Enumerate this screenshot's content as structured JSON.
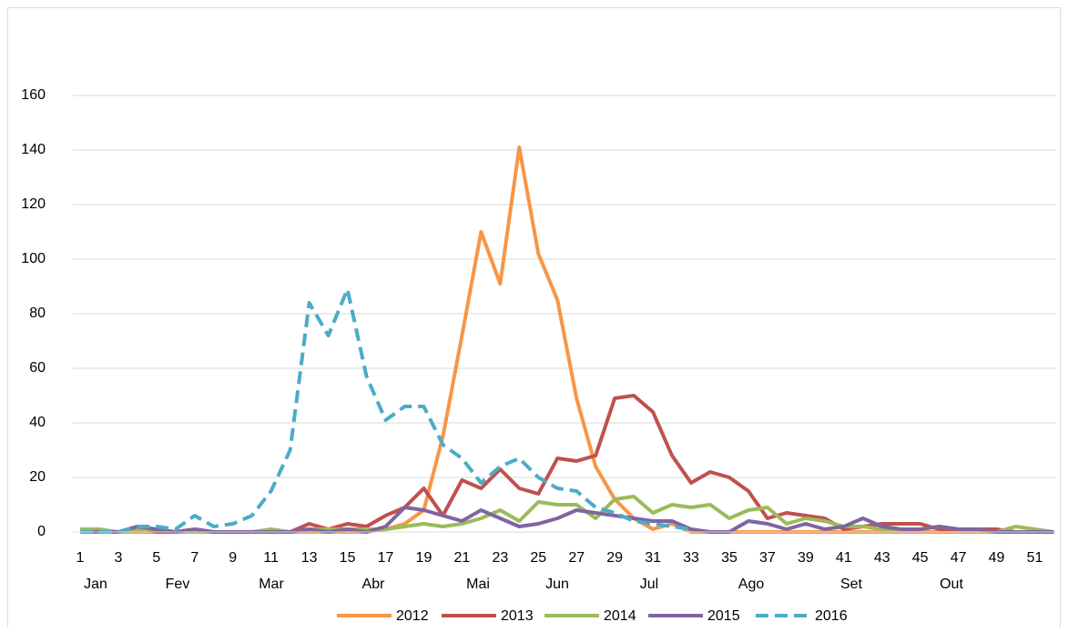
{
  "chart_data": {
    "type": "line",
    "categories": [
      "1",
      null,
      "3",
      null,
      "5",
      null,
      "7",
      null,
      "9",
      null,
      "11",
      null,
      "13",
      null,
      "15",
      null,
      "17",
      null,
      "19",
      null,
      "21",
      null,
      "23",
      null,
      "25",
      null,
      "27",
      null,
      "29",
      null,
      "31",
      null,
      "33",
      null,
      "35",
      null,
      "37",
      null,
      "39",
      null,
      "41",
      null,
      "43",
      null,
      "45",
      null,
      "47",
      null,
      "49",
      null,
      "51",
      null
    ],
    "months": [
      "Jan",
      "Fev",
      "Mar",
      "Abr",
      "Mai",
      "Jun",
      "Jul",
      "Ago",
      "Set",
      "Out"
    ],
    "ylim": [
      0,
      180
    ],
    "yticks": [
      0,
      20,
      40,
      60,
      80,
      100,
      120,
      140,
      160
    ],
    "grid": true,
    "series": [
      {
        "name": "2012",
        "color": "#f79646",
        "dashed": false,
        "values": [
          0,
          0,
          0,
          0,
          0,
          0,
          0,
          0,
          0,
          0,
          0,
          0,
          0,
          0,
          0,
          0,
          1,
          3,
          8,
          35,
          72,
          110,
          91,
          141,
          102,
          85,
          49,
          24,
          12,
          5,
          1,
          3,
          0,
          0,
          0,
          0,
          0,
          0,
          0,
          0,
          0,
          0,
          0,
          0,
          0,
          0,
          0,
          0,
          0,
          0,
          0,
          0
        ]
      },
      {
        "name": "2013",
        "color": "#c0504d",
        "dashed": false,
        "values": [
          0,
          0,
          0,
          2,
          0,
          0,
          1,
          0,
          0,
          0,
          0,
          0,
          3,
          1,
          3,
          2,
          6,
          9,
          16,
          6,
          19,
          16,
          23,
          16,
          14,
          27,
          26,
          28,
          49,
          50,
          44,
          28,
          18,
          22,
          20,
          15,
          5,
          7,
          6,
          5,
          1,
          2,
          3,
          3,
          3,
          1,
          1,
          1,
          1,
          0,
          0,
          0
        ]
      },
      {
        "name": "2014",
        "color": "#9bbb59",
        "dashed": false,
        "values": [
          1,
          1,
          0,
          1,
          1,
          0,
          0,
          0,
          0,
          0,
          1,
          0,
          1,
          1,
          1,
          1,
          1,
          2,
          3,
          2,
          3,
          5,
          8,
          4,
          11,
          10,
          10,
          5,
          12,
          13,
          7,
          10,
          9,
          10,
          5,
          8,
          9,
          3,
          5,
          4,
          2,
          2,
          1,
          1,
          1,
          2,
          1,
          1,
          0,
          2,
          1,
          0
        ]
      },
      {
        "name": "2015",
        "color": "#8064a2",
        "dashed": false,
        "values": [
          0,
          0,
          0,
          2,
          1,
          0,
          1,
          0,
          0,
          0,
          0,
          0,
          1,
          0,
          1,
          0,
          2,
          9,
          8,
          6,
          4,
          8,
          5,
          2,
          3,
          5,
          8,
          7,
          6,
          5,
          4,
          4,
          1,
          0,
          0,
          4,
          3,
          1,
          3,
          1,
          2,
          5,
          2,
          1,
          1,
          2,
          1,
          1,
          0,
          0,
          0,
          0
        ]
      },
      {
        "name": "2016",
        "color": "#4bacc6",
        "dashed": true,
        "values": [
          0,
          0,
          0,
          2,
          2,
          1,
          6,
          2,
          3,
          6,
          15,
          30,
          84,
          72,
          89,
          57,
          41,
          46,
          46,
          32,
          27,
          18,
          24,
          27,
          20,
          16,
          15,
          9,
          7,
          4,
          3,
          2,
          1,
          null,
          null,
          null,
          null,
          null,
          null,
          null,
          null,
          null,
          null,
          null,
          null,
          null,
          null,
          null,
          null,
          null,
          null,
          null
        ]
      }
    ]
  }
}
